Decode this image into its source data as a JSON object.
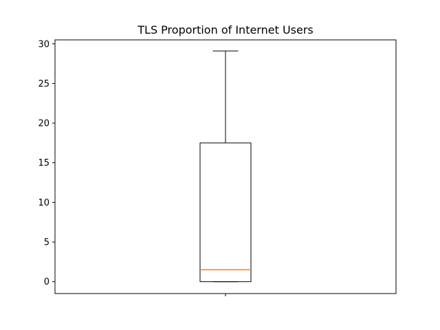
{
  "chart_data": {
    "type": "box",
    "title": "TLS Proportion of Internet Users",
    "xlabel": "",
    "ylabel": "",
    "x_ticks": [
      ""
    ],
    "ylim": [
      -1.5,
      30.5
    ],
    "yticks": [
      0,
      5,
      10,
      15,
      20,
      25,
      30
    ],
    "grid": false,
    "box": {
      "whisker_low": 0.0,
      "q1": 0.0,
      "median": 1.5,
      "q3": 17.5,
      "whisker_high": 29.1
    },
    "colors": {
      "box": "#000000",
      "median": "#ff7f0e",
      "whisker": "#000000"
    }
  }
}
